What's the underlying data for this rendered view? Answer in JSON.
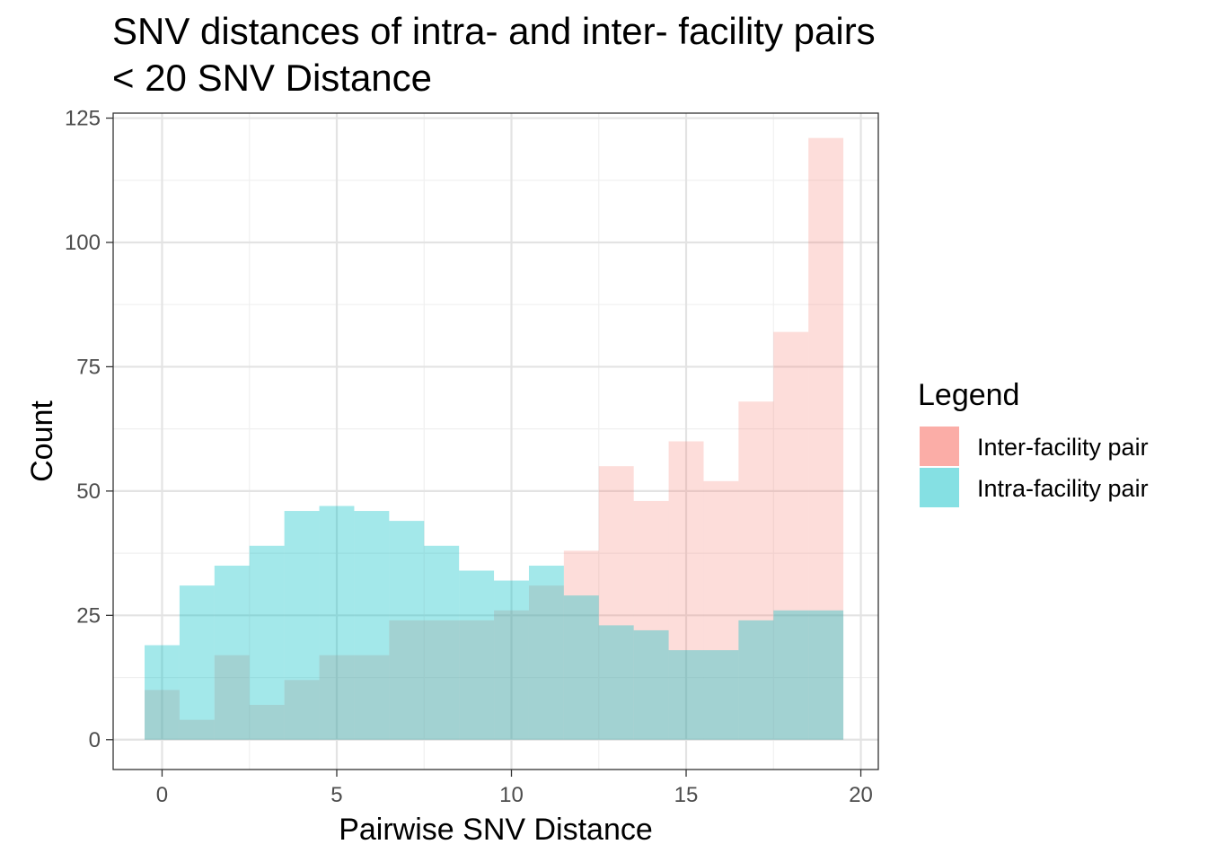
{
  "chart_data": {
    "type": "bar",
    "title": "SNV distances of intra- and inter- facility pairs",
    "subtitle": "< 20 SNV Distance",
    "xlabel": "Pairwise SNV Distance",
    "ylabel": "Count",
    "xlim": [
      -1.4,
      20.5
    ],
    "ylim": [
      -6,
      126
    ],
    "x_ticks": [
      0,
      5,
      10,
      15,
      20
    ],
    "y_ticks": [
      0,
      25,
      50,
      75,
      100,
      125
    ],
    "grid": true,
    "legend": {
      "title": "Legend",
      "position": "right",
      "entries": [
        "Inter-facility pair",
        "Intra-facility pair"
      ]
    },
    "bin_width": 1,
    "x": [
      0,
      1,
      2,
      3,
      4,
      5,
      6,
      7,
      8,
      9,
      10,
      11,
      12,
      13,
      14,
      15,
      16,
      17,
      18,
      19
    ],
    "series": [
      {
        "name": "Inter-facility pair",
        "color": "#F8766D",
        "values": [
          10,
          4,
          17,
          7,
          12,
          17,
          17,
          24,
          24,
          24,
          26,
          31,
          38,
          55,
          48,
          60,
          52,
          68,
          82,
          121
        ]
      },
      {
        "name": "Intra-facility pair",
        "color": "#00BFC4",
        "values": [
          19,
          31,
          35,
          39,
          46,
          47,
          46,
          44,
          39,
          34,
          32,
          35,
          29,
          23,
          22,
          18,
          18,
          24,
          26,
          26
        ]
      }
    ]
  }
}
